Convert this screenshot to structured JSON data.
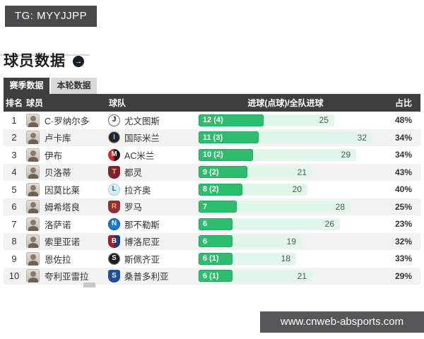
{
  "overlays": {
    "tg_label": "TG: MYYJJPP",
    "site_label": "www.cnweb-absports.com"
  },
  "page": {
    "title": "球员数据"
  },
  "icons": {
    "title_arrow": "→"
  },
  "colors": {
    "bar_fill": "#2cbe6e",
    "bar_track": "#e2f7eb",
    "header_bg": "#3e3e3e",
    "tab_active_bg": "#3f3f3f",
    "tab_inactive_bg": "#d8d8d8",
    "banner_bg": "#4a4a4c",
    "stripe_bg": "#f2f2f2"
  },
  "tabs": [
    {
      "label": "赛季数据",
      "active": true
    },
    {
      "label": "本轮数据",
      "active": false
    }
  ],
  "table": {
    "columns": {
      "rank": "排名",
      "player": "球员",
      "team": "球队",
      "goals": "进球(点球)/全队进球",
      "share": "占比"
    },
    "max_team_goals": 32,
    "rows": [
      {
        "rank": 1,
        "player": "C·罗纳尔多",
        "team": "尤文图斯",
        "goals_label": "12 (4)",
        "goals": 12,
        "team_goals": 25,
        "share": "48%",
        "logo": {
          "shape": "circle",
          "bg": "#ffffff",
          "bg2": null,
          "fg": "#111111",
          "letter": "J",
          "border": "#666666"
        }
      },
      {
        "rank": 2,
        "player": "卢卡库",
        "team": "国际米兰",
        "goals_label": "11 (3)",
        "goals": 11,
        "team_goals": 32,
        "share": "34%",
        "logo": {
          "shape": "circle",
          "bg": "#152647",
          "bg2": null,
          "fg": "#d8b44a",
          "letter": "I",
          "border": "#d8b44a"
        }
      },
      {
        "rank": 3,
        "player": "伊布",
        "team": "AC米兰",
        "goals_label": "10 (2)",
        "goals": 10,
        "team_goals": 29,
        "share": "34%",
        "logo": {
          "shape": "circle",
          "bg": "#d8232a",
          "bg2": "#1a1a1a",
          "fg": "#ffffff",
          "letter": "M",
          "border": null
        }
      },
      {
        "rank": 4,
        "player": "贝洛蒂",
        "team": "都灵",
        "goals_label": "9 (2)",
        "goals": 9,
        "team_goals": 21,
        "share": "43%",
        "logo": {
          "shape": "shield",
          "bg": "#7d2230",
          "bg2": null,
          "fg": "#f2c14e",
          "letter": "T",
          "border": null
        }
      },
      {
        "rank": 5,
        "player": "因莫比莱",
        "team": "拉齐奥",
        "goals_label": "8 (2)",
        "goals": 8,
        "team_goals": 20,
        "share": "40%",
        "logo": {
          "shape": "circle",
          "bg": "#d9ecf8",
          "bg2": null,
          "fg": "#1f6fb5",
          "letter": "L",
          "border": "#a9cde8"
        }
      },
      {
        "rank": 6,
        "player": "姆希塔良",
        "team": "罗马",
        "goals_label": "7",
        "goals": 7,
        "team_goals": 28,
        "share": "25%",
        "logo": {
          "shape": "shield",
          "bg": "#8e2f3e",
          "bg2": null,
          "fg": "#f0b33c",
          "letter": "R",
          "border": null
        }
      },
      {
        "rank": 7,
        "player": "洛萨诺",
        "team": "那不勒斯",
        "goals_label": "6",
        "goals": 6,
        "team_goals": 26,
        "share": "23%",
        "logo": {
          "shape": "circle",
          "bg": "#1c77d4",
          "bg2": null,
          "fg": "#ffffff",
          "letter": "N",
          "border": "#0f5aa8"
        }
      },
      {
        "rank": 8,
        "player": "索里亚诺",
        "team": "博洛尼亚",
        "goals_label": "6",
        "goals": 6,
        "team_goals": 19,
        "share": "32%",
        "logo": {
          "shape": "shield",
          "bg": "#a31e2d",
          "bg2": "#1d3c6e",
          "fg": "#ffffff",
          "letter": "B",
          "border": null
        }
      },
      {
        "rank": 9,
        "player": "恩佐拉",
        "team": "斯佩齐亚",
        "goals_label": "6 (1)",
        "goals": 6,
        "team_goals": 18,
        "share": "33%",
        "logo": {
          "shape": "circle",
          "bg": "#1d1d1d",
          "bg2": null,
          "fg": "#ffffff",
          "letter": "S",
          "border": "#888888"
        }
      },
      {
        "rank": 10,
        "player": "夸利亚雷拉",
        "team": "桑普多利亚",
        "goals_label": "6 (1)",
        "goals": 6,
        "team_goals": 21,
        "share": "29%",
        "logo": {
          "shape": "shield",
          "bg": "#1d4f9e",
          "bg2": null,
          "fg": "#ffffff",
          "letter": "S",
          "border": null
        }
      }
    ]
  }
}
